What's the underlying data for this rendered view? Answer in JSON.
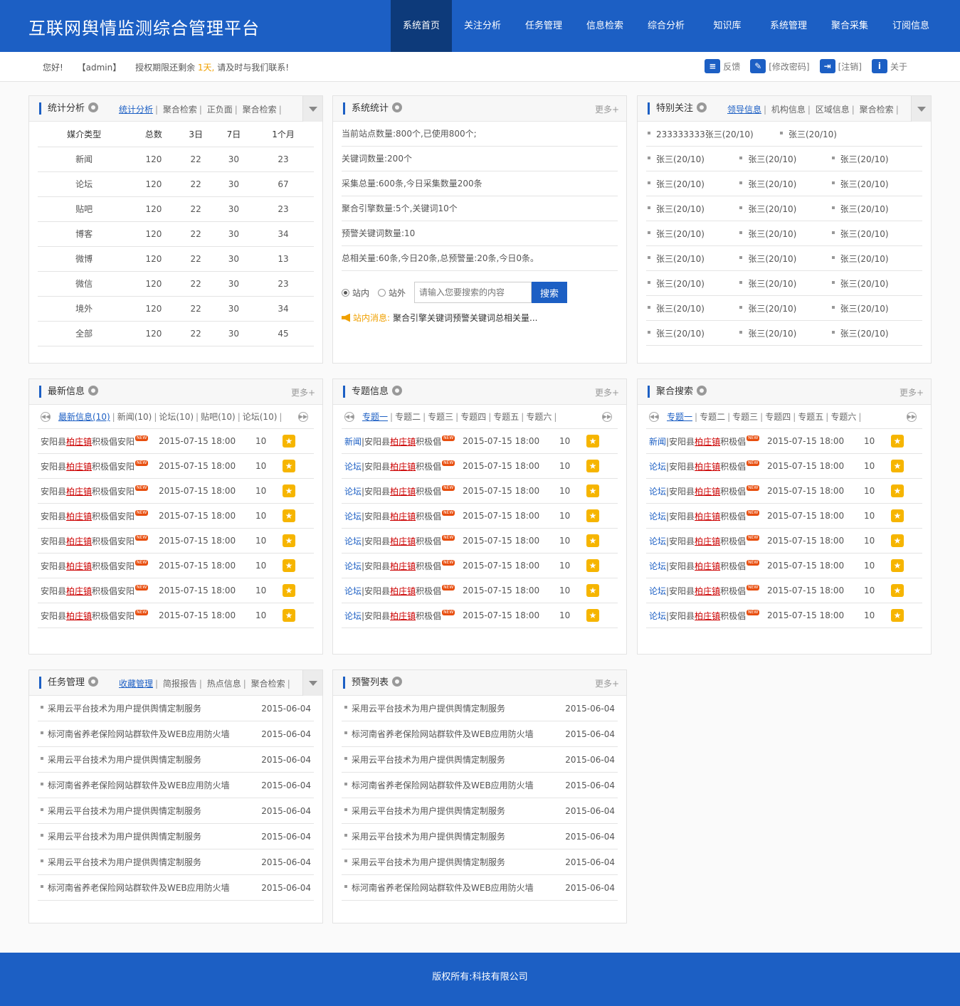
{
  "header": {
    "title": "互联网舆情监测综合管理平台",
    "nav": [
      "系统首页",
      "关注分析",
      "任务管理",
      "信息检索",
      "综合分析",
      "知识库",
      "系统管理",
      "聚合采集",
      "订阅信息"
    ]
  },
  "infobar": {
    "hello": "您好!",
    "user": "【admin】",
    "notice_a": "授权期限还剩余",
    "days": "1天,",
    "notice_b": "请及时与我们联系!",
    "tools": [
      {
        "label": "反馈",
        "icon": "feedback-icon"
      },
      {
        "label": "[修改密码]",
        "icon": "edit-icon"
      },
      {
        "label": "[注销]",
        "icon": "logout-icon"
      },
      {
        "label": "关于",
        "icon": "info-icon"
      }
    ]
  },
  "stats": {
    "title": "统计分析",
    "tabs": [
      "统计分析",
      "聚合检索",
      "正负面",
      "聚合检索"
    ],
    "headers": [
      "媒介类型",
      "总数",
      "3日",
      "7日",
      "1个月"
    ],
    "rows": [
      [
        "新闻",
        "120",
        "22",
        "30",
        "23"
      ],
      [
        "论坛",
        "120",
        "22",
        "30",
        "67"
      ],
      [
        "贴吧",
        "120",
        "22",
        "30",
        "23"
      ],
      [
        "博客",
        "120",
        "22",
        "30",
        "34"
      ],
      [
        "微博",
        "120",
        "22",
        "30",
        "13"
      ],
      [
        "微信",
        "120",
        "22",
        "30",
        "23"
      ],
      [
        "境外",
        "120",
        "22",
        "30",
        "34"
      ],
      [
        "全部",
        "120",
        "22",
        "30",
        "45"
      ]
    ]
  },
  "sysstat": {
    "title": "系统统计",
    "more": "更多+",
    "lines": [
      "当前站点数量:800个,已使用800个;",
      "关键词数量:200个",
      "采集总量:600条,今日采集数量200条",
      "聚合引擎数量:5个,关键词10个",
      "预警关键词数量:10",
      "总相关量:60条,今日20条,总预警量:20条,今日0条。"
    ],
    "radio_in": "站内",
    "radio_out": "站外",
    "search_placeholder": "请输入您要搜索的内容",
    "search_btn": "搜索",
    "notice_label": "站内消息:",
    "notice_text": "聚合引擎关键词预警关键词总相关量..."
  },
  "focus": {
    "title": "特别关注",
    "tabs": [
      "领导信息",
      "机构信息",
      "区域信息",
      "聚合检索"
    ],
    "first_row": [
      "233333333张三(20/10)",
      "张三(20/10)"
    ],
    "rows": [
      [
        "张三(20/10)",
        "张三(20/10)",
        "张三(20/10)"
      ],
      [
        "张三(20/10)",
        "张三(20/10)",
        "张三(20/10)"
      ],
      [
        "张三(20/10)",
        "张三(20/10)",
        "张三(20/10)"
      ],
      [
        "张三(20/10)",
        "张三(20/10)",
        "张三(20/10)"
      ],
      [
        "张三(20/10)",
        "张三(20/10)",
        "张三(20/10)"
      ],
      [
        "张三(20/10)",
        "张三(20/10)",
        "张三(20/10)"
      ],
      [
        "张三(20/10)",
        "张三(20/10)",
        "张三(20/10)"
      ],
      [
        "张三(20/10)",
        "张三(20/10)",
        "张三(20/10)"
      ]
    ]
  },
  "latest": {
    "title": "最新信息",
    "more": "更多+",
    "tabs": [
      "最新信息(10)",
      "新闻(10)",
      "论坛(10)",
      "贴吧(10)",
      "论坛(10)"
    ],
    "rows": [
      {
        "pre": "安阳县",
        "kw": "柏庄镇",
        "post": "积极倡安阳",
        "date": "2015-07-15 18:00",
        "count": "10"
      },
      {
        "pre": "安阳县",
        "kw": "柏庄镇",
        "post": "积极倡安阳",
        "date": "2015-07-15 18:00",
        "count": "10"
      },
      {
        "pre": "安阳县",
        "kw": "柏庄镇",
        "post": "积极倡安阳",
        "date": "2015-07-15 18:00",
        "count": "10"
      },
      {
        "pre": "安阳县",
        "kw": "柏庄镇",
        "post": "积极倡安阳",
        "date": "2015-07-15 18:00",
        "count": "10"
      },
      {
        "pre": "安阳县",
        "kw": "柏庄镇",
        "post": "积极倡安阳",
        "date": "2015-07-15 18:00",
        "count": "10"
      },
      {
        "pre": "安阳县",
        "kw": "柏庄镇",
        "post": "积极倡安阳",
        "date": "2015-07-15 18:00",
        "count": "10"
      },
      {
        "pre": "安阳县",
        "kw": "柏庄镇",
        "post": "积极倡安阳",
        "date": "2015-07-15 18:00",
        "count": "10"
      },
      {
        "pre": "安阳县",
        "kw": "柏庄镇",
        "post": "积极倡安阳",
        "date": "2015-07-15 18:00",
        "count": "10"
      }
    ]
  },
  "topics": {
    "title": "专题信息",
    "more": "更多+",
    "tabs": [
      "专题一",
      "专题二",
      "专题三",
      "专题四",
      "专题五",
      "专题六"
    ],
    "rows": [
      {
        "cat": "新闻",
        "pre": "|安阳县",
        "kw": "柏庄镇",
        "post": "积极倡",
        "date": "2015-07-15 18:00",
        "count": "10"
      },
      {
        "cat": "论坛",
        "pre": "|安阳县",
        "kw": "柏庄镇",
        "post": "积极倡",
        "date": "2015-07-15 18:00",
        "count": "10"
      },
      {
        "cat": "论坛",
        "pre": "|安阳县",
        "kw": "柏庄镇",
        "post": "积极倡",
        "date": "2015-07-15 18:00",
        "count": "10"
      },
      {
        "cat": "论坛",
        "pre": "|安阳县",
        "kw": "柏庄镇",
        "post": "积极倡",
        "date": "2015-07-15 18:00",
        "count": "10"
      },
      {
        "cat": "论坛",
        "pre": "|安阳县",
        "kw": "柏庄镇",
        "post": "积极倡",
        "date": "2015-07-15 18:00",
        "count": "10"
      },
      {
        "cat": "论坛",
        "pre": "|安阳县",
        "kw": "柏庄镇",
        "post": "积极倡",
        "date": "2015-07-15 18:00",
        "count": "10"
      },
      {
        "cat": "论坛",
        "pre": "|安阳县",
        "kw": "柏庄镇",
        "post": "积极倡",
        "date": "2015-07-15 18:00",
        "count": "10"
      },
      {
        "cat": "论坛",
        "pre": "|安阳县",
        "kw": "柏庄镇",
        "post": "积极倡",
        "date": "2015-07-15 18:00",
        "count": "10"
      }
    ]
  },
  "agg": {
    "title": "聚合搜索",
    "more": "更多+",
    "tabs": [
      "专题一",
      "专题二",
      "专题三",
      "专题四",
      "专题五",
      "专题六"
    ],
    "rows": [
      {
        "cat": "新闻",
        "pre": "|安阳县",
        "kw": "柏庄镇",
        "post": "积极倡",
        "date": "2015-07-15 18:00",
        "count": "10"
      },
      {
        "cat": "论坛",
        "pre": "|安阳县",
        "kw": "柏庄镇",
        "post": "积极倡",
        "date": "2015-07-15 18:00",
        "count": "10"
      },
      {
        "cat": "论坛",
        "pre": "|安阳县",
        "kw": "柏庄镇",
        "post": "积极倡",
        "date": "2015-07-15 18:00",
        "count": "10"
      },
      {
        "cat": "论坛",
        "pre": "|安阳县",
        "kw": "柏庄镇",
        "post": "积极倡",
        "date": "2015-07-15 18:00",
        "count": "10"
      },
      {
        "cat": "论坛",
        "pre": "|安阳县",
        "kw": "柏庄镇",
        "post": "积极倡",
        "date": "2015-07-15 18:00",
        "count": "10"
      },
      {
        "cat": "论坛",
        "pre": "|安阳县",
        "kw": "柏庄镇",
        "post": "积极倡",
        "date": "2015-07-15 18:00",
        "count": "10"
      },
      {
        "cat": "论坛",
        "pre": "|安阳县",
        "kw": "柏庄镇",
        "post": "积极倡",
        "date": "2015-07-15 18:00",
        "count": "10"
      },
      {
        "cat": "论坛",
        "pre": "|安阳县",
        "kw": "柏庄镇",
        "post": "积极倡",
        "date": "2015-07-15 18:00",
        "count": "10"
      }
    ]
  },
  "new_badge": "NEW",
  "tasks": {
    "title": "任务管理",
    "tabs": [
      "收藏管理",
      "简报报告",
      "热点信息",
      "聚合检索"
    ],
    "rows": [
      {
        "text": "采用云平台技术为用户提供舆情定制服务",
        "date": "2015-06-04"
      },
      {
        "text": "标河南省养老保险网站群软件及WEB应用防火墙",
        "date": "2015-06-04"
      },
      {
        "text": "采用云平台技术为用户提供舆情定制服务",
        "date": "2015-06-04"
      },
      {
        "text": "标河南省养老保险网站群软件及WEB应用防火墙",
        "date": "2015-06-04"
      },
      {
        "text": "采用云平台技术为用户提供舆情定制服务",
        "date": "2015-06-04"
      },
      {
        "text": "采用云平台技术为用户提供舆情定制服务",
        "date": "2015-06-04"
      },
      {
        "text": "采用云平台技术为用户提供舆情定制服务",
        "date": "2015-06-04"
      },
      {
        "text": "标河南省养老保险网站群软件及WEB应用防火墙",
        "date": "2015-06-04"
      }
    ]
  },
  "alerts": {
    "title": "预警列表",
    "more": "更多+",
    "rows": [
      {
        "text": "采用云平台技术为用户提供舆情定制服务",
        "date": "2015-06-04"
      },
      {
        "text": "标河南省养老保险网站群软件及WEB应用防火墙",
        "date": "2015-06-04"
      },
      {
        "text": "采用云平台技术为用户提供舆情定制服务",
        "date": "2015-06-04"
      },
      {
        "text": "标河南省养老保险网站群软件及WEB应用防火墙",
        "date": "2015-06-04"
      },
      {
        "text": "采用云平台技术为用户提供舆情定制服务",
        "date": "2015-06-04"
      },
      {
        "text": "采用云平台技术为用户提供舆情定制服务",
        "date": "2015-06-04"
      },
      {
        "text": "采用云平台技术为用户提供舆情定制服务",
        "date": "2015-06-04"
      },
      {
        "text": "标河南省养老保险网站群软件及WEB应用防火墙",
        "date": "2015-06-04"
      }
    ]
  },
  "footer": {
    "copyright": "版权所有:科技有限公司"
  }
}
